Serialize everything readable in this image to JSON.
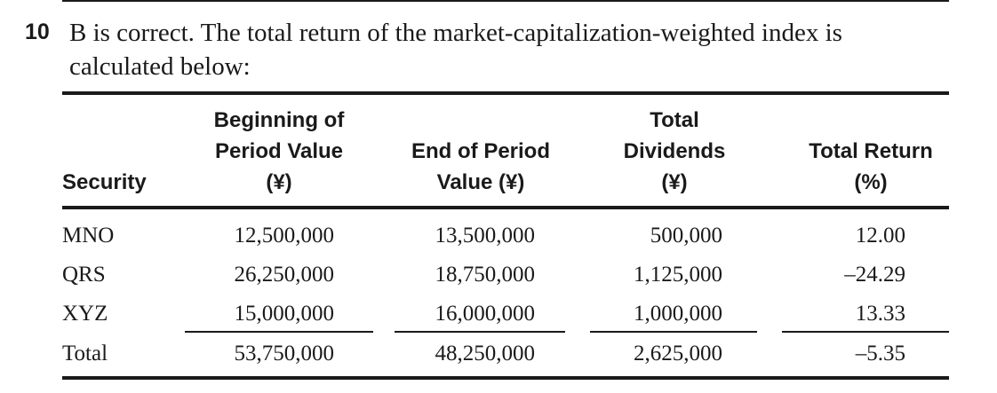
{
  "question": {
    "number": "10",
    "text": "B is correct. The total return of the market-capitalization-weighted index is calculated below:"
  },
  "table": {
    "headers": {
      "security": "Security",
      "beginning": "Beginning of\nPeriod Value\n(¥)",
      "end": "End of Period\nValue (¥)",
      "dividends": "Total\nDividends\n(¥)",
      "total_return": "Total Return\n(%)"
    },
    "rows": [
      {
        "security": "MNO",
        "beginning": "12,500,000",
        "end": "13,500,000",
        "dividends": "500,000",
        "total_return": "12.00"
      },
      {
        "security": "QRS",
        "beginning": "26,250,000",
        "end": "18,750,000",
        "dividends": "1,125,000",
        "total_return": "–24.29"
      },
      {
        "security": "XYZ",
        "beginning": "15,000,000",
        "end": "16,000,000",
        "dividends": "1,000,000",
        "total_return": "13.33"
      }
    ],
    "total": {
      "security": "Total",
      "beginning": "53,750,000",
      "end": "48,250,000",
      "dividends": "2,625,000",
      "total_return": "–5.35"
    }
  }
}
